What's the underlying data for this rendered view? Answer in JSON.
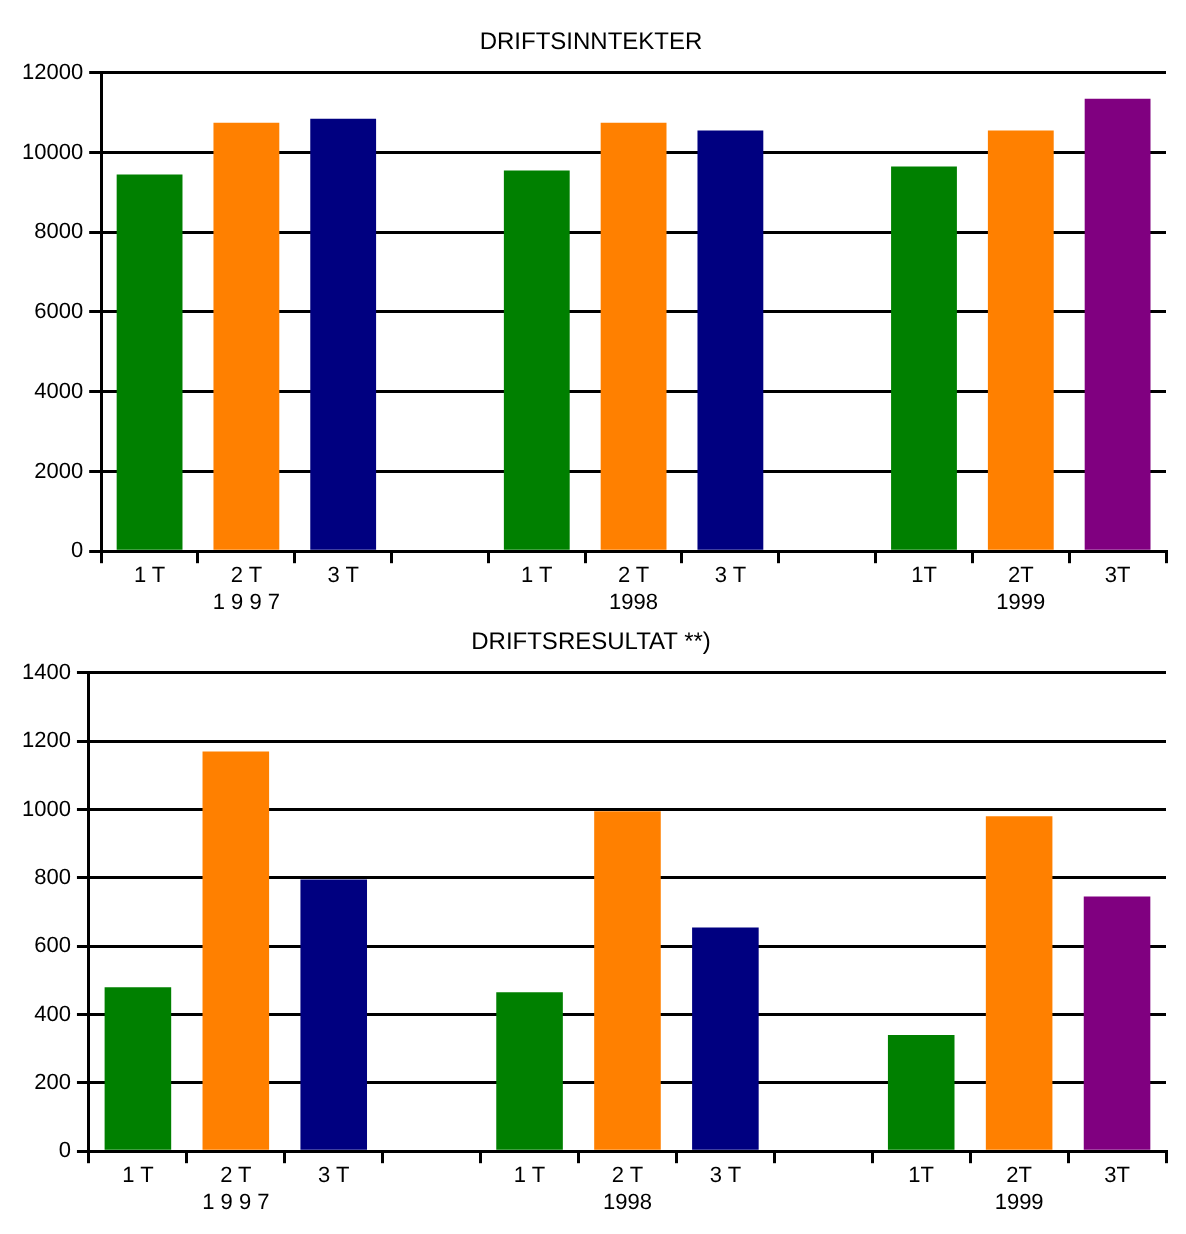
{
  "chart_data": [
    {
      "type": "bar",
      "title": "DRIFTSINNTEKTER",
      "categories": [
        "1 T",
        "2 T\n1 9 9 7",
        "3 T",
        null,
        "1 T",
        "2 T\n1998",
        "3 T",
        null,
        "1T",
        "2T\n1999",
        "3T"
      ],
      "values": [
        9450,
        10750,
        10850,
        null,
        9550,
        10750,
        10550,
        null,
        9650,
        10550,
        11350
      ],
      "colors": [
        "#008000",
        "#ff8000",
        "#000080",
        null,
        "#008000",
        "#ff8000",
        "#000080",
        null,
        "#008000",
        "#ff8000",
        "#800080"
      ],
      "ylim": [
        0,
        12000
      ],
      "yticks": [
        0,
        2000,
        4000,
        6000,
        8000,
        10000,
        12000
      ],
      "grid": "y",
      "legend": false
    },
    {
      "type": "bar",
      "title": "DRIFTSRESULTAT **)",
      "categories": [
        "1 T",
        "2 T\n1 9 9 7",
        "3 T",
        null,
        "1 T",
        "2 T\n1998",
        "3 T",
        null,
        "1T",
        "2T\n1999",
        "3T"
      ],
      "values": [
        480,
        1170,
        795,
        null,
        465,
        995,
        655,
        null,
        340,
        980,
        745
      ],
      "colors": [
        "#008000",
        "#ff8000",
        "#000080",
        null,
        "#008000",
        "#ff8000",
        "#000080",
        null,
        "#008000",
        "#ff8000",
        "#800080"
      ],
      "ylim": [
        0,
        1400
      ],
      "yticks": [
        0,
        200,
        400,
        600,
        800,
        1000,
        1200,
        1400
      ],
      "grid": "y",
      "legend": false
    }
  ]
}
